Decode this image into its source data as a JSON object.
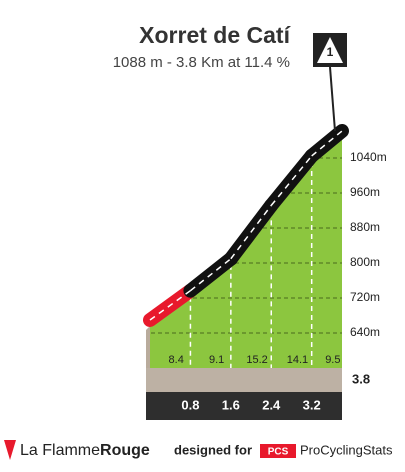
{
  "chart_data": {
    "type": "profile",
    "title": "Xorret de Catí",
    "subtitle": "1088 m - 3.8 Km at 11.4 %",
    "badge": "1",
    "x": [
      0,
      0.8,
      1.6,
      2.4,
      3.2,
      3.8
    ],
    "xlim": [
      0,
      3.8
    ],
    "series": [
      {
        "values": [
          656,
          723,
          796,
          918,
          1031,
          1088
        ],
        "color": "#8cc63f"
      }
    ],
    "gradients": [
      8.4,
      9.1,
      15.2,
      14.1,
      9.5
    ],
    "segment_colors": [
      "#e8192c",
      "#111111",
      "#111111",
      "#111111",
      "#111111"
    ],
    "ylim": [
      560,
      1100
    ],
    "yticks": [
      {
        "value": 640,
        "label": "640m"
      },
      {
        "value": 720,
        "label": "720m"
      },
      {
        "value": 800,
        "label": "800m"
      },
      {
        "value": 880,
        "label": "880m"
      },
      {
        "value": 960,
        "label": "960m"
      },
      {
        "value": 1040,
        "label": "1040m"
      }
    ],
    "grid": true
  },
  "footer": {
    "brand_a": "La Flamme",
    "brand_b": "Rouge",
    "designed": "designed for",
    "pcs": "PCS",
    "site": "ProCyclingStats"
  }
}
